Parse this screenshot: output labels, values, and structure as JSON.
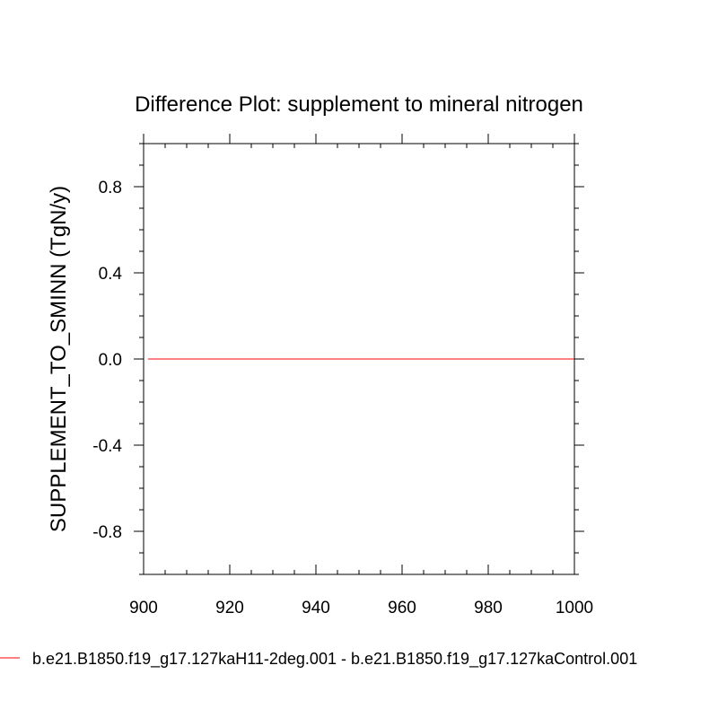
{
  "chart_data": {
    "type": "line",
    "title": "Difference Plot: supplement to mineral nitrogen",
    "xlabel": "",
    "ylabel": "SUPPLEMENT_TO_SMINN  (TgN/y)",
    "xlim": [
      900,
      1000
    ],
    "ylim": [
      -1.0,
      1.0
    ],
    "x_ticks": [
      900,
      920,
      940,
      960,
      980,
      1000
    ],
    "x_tick_labels": [
      "900",
      "920",
      "940",
      "960",
      "980",
      "1000"
    ],
    "y_ticks": [
      -0.8,
      -0.4,
      0.0,
      0.4,
      0.8
    ],
    "y_tick_labels": [
      "-0.8",
      "-0.4",
      "0.0",
      "0.4",
      "0.8"
    ],
    "grid": false,
    "legend_position": "bottom",
    "series": [
      {
        "name": "b.e21.B1850.f19_g17.127kaH11-2deg.001 - b.e21.B1850.f19_g17.127kaControl.001",
        "color": "#ff0000",
        "x": [
          901,
          1000
        ],
        "values": [
          0.0,
          0.0
        ]
      }
    ]
  }
}
